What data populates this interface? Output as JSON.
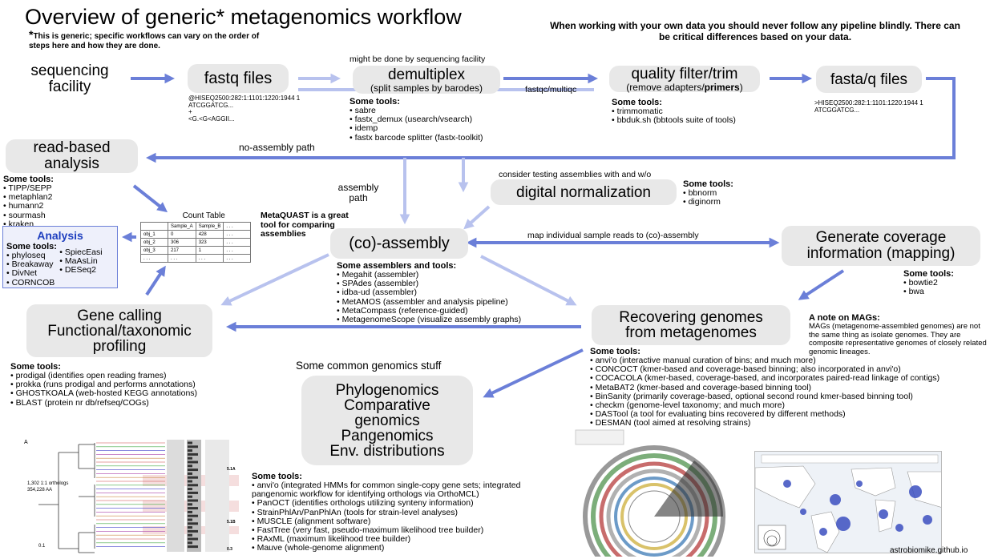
{
  "title": "Overview of generic* metagenomics workflow",
  "asterisk": "*",
  "generic_note": "This is generic; specific workflows can vary on the order of steps here and how they are done.",
  "warning": "When working with your own data you should never follow any pipeline blindly. There can be critical differences based on your data.",
  "sequencing_facility": "sequencing facility",
  "fastq_files": {
    "label": "fastq files",
    "example": [
      "@HISEQ2500:282:1:1101:1220:1944 1",
      "ATCGGATCG...",
      "+",
      "<G.<G<AGGII..."
    ]
  },
  "demultiplex": {
    "note": "might be done by sequencing facility",
    "label": "demultiplex",
    "sub": "(split samples by barodes)",
    "tools_head": "Some tools:",
    "tools": [
      "sabre",
      "fastx_demux (usearch/vsearch)",
      "idemp",
      "fastx barcode splitter (fastx-toolkit)"
    ]
  },
  "fastqc_label": "fastqc/multiqc",
  "quality": {
    "label": "quality filter/trim",
    "sub_pre": "(remove adapters/",
    "sub_bold": "primers",
    "sub_post": ")",
    "tools_head": "Some tools:",
    "tools": [
      "trimmomatic",
      "bbduk.sh (bbtools suite of tools)"
    ]
  },
  "fasta_files": {
    "label": "fasta/q files",
    "example": [
      ">HISEQ2500:282:1:1101:1220:1944 1",
      "ATCGGATCG..."
    ]
  },
  "read_based": {
    "label": "read-based analysis",
    "tools_head": "Some tools:",
    "tools": [
      "TIPP/SEPP",
      "metaphlan2",
      "humann2",
      "sourmash",
      "kraken"
    ]
  },
  "no_assembly_path": "no-assembly path",
  "assembly_path": "assembly path",
  "count_table": {
    "title": "Count Table",
    "header": [
      "",
      "Sample_A",
      "Sample_B",
      ". . ."
    ],
    "rows": [
      [
        "obj_1",
        "0",
        "428",
        ". . ."
      ],
      [
        "obj_2",
        "306",
        "323",
        ". . ."
      ],
      [
        "obj_3",
        "217",
        "1",
        ". . ."
      ],
      [
        ". . .",
        ". . .",
        ". . .",
        ". . ."
      ]
    ]
  },
  "analysis": {
    "title": "Analysis",
    "tools_head": "Some tools:",
    "tools_col1": [
      "phyloseq",
      "Breakaway",
      "DivNet",
      "CORNCOB"
    ],
    "tools_col2": [
      "SpiecEasi",
      "MaAsLin",
      "DESeq2"
    ]
  },
  "metaquast_note": "MetaQUAST is a great tool for comparing assemblies",
  "digital_norm": {
    "note": "consider testing assemblies with and w/o",
    "label": "digital normalization",
    "tools_head": "Some tools:",
    "tools": [
      "bbnorm",
      "diginorm"
    ]
  },
  "coassembly": {
    "label": "(co)-assembly",
    "tools_head": "Some assemblers and tools:",
    "tools": [
      "Megahit (assembler)",
      "SPAdes (assembler)",
      "idba-ud (assembler)",
      "MetAMOS (assembler and analysis pipeline)",
      "MetaCompass (reference-guided)",
      "MetagenomeScope (visualize assembly graphs)"
    ]
  },
  "map_label": "map individual sample reads to (co)-assembly",
  "coverage": {
    "label": "Generate coverage information (mapping)",
    "tools_head": "Some tools:",
    "tools": [
      "bowtie2",
      "bwa"
    ]
  },
  "gene_calling": {
    "label_lines": [
      "Gene calling",
      "Functional/taxonomic",
      "profiling"
    ],
    "tools_head": "Some tools:",
    "tools": [
      "prodigal (identifies open reading frames)",
      "prokka (runs prodigal and performs annotations)",
      "GHOSTKOALA (web-hosted KEGG annotations)",
      "BLAST (protein nr db/refseq/COGs)"
    ]
  },
  "recovering": {
    "label_lines": [
      "Recovering genomes",
      "from metagenomes"
    ],
    "tools_head": "Some tools:",
    "tools": [
      "anvi'o (interactive manual curation of bins; and much more)",
      "CONCOCT (kmer-based and coverage-based binning; also incorporated in anvi'o)",
      "COCACOLA (kmer-based, coverage-based, and incorporates paired-read linkage of contigs)",
      "MetaBAT2 (kmer-based and coverage-based binning tool)",
      "BinSanity (primarily coverage-based, optional second round kmer-based binning tool)",
      "checkm (genome-level taxonomy; and much more)",
      "DASTool (a tool for evaluating bins recovered by different methods)",
      "DESMAN (tool aimed at resolving strains)"
    ]
  },
  "mags": {
    "head": "A note on MAGs:",
    "body": "MAGs (metagenome-assembled genomes) are not the same thing as isolate genomes. They are composite representative genomes of closely related genomic lineages."
  },
  "genomics": {
    "heading": "Some common genomics stuff",
    "label_lines": [
      "Phylogenomics",
      "Comparative",
      "genomics",
      "Pangenomics",
      "Env. distributions"
    ],
    "tools_head": "Some tools:",
    "tools": [
      "anvi'o (integrated HMMs for common single-copy gene sets; integrated pangenomic workflow for identifying orthologs via OrthoMCL)",
      "PanOCT (identifies orthologs utilizing synteny information)",
      "StrainPhlAn/PanPhlAn (tools for strain-level analyses)",
      "MUSCLE (alignment software)",
      "FastTree (very fast, pseudo-maximum likelihood tree builder)",
      "RAxML (maximum likelihood tree builder)",
      "Mauve (whole-genome alignment)"
    ]
  },
  "tree_fig": {
    "panel": "A",
    "orthologs": "1,302 1:1 orthologs",
    "aa": "354,228 AA",
    "scale": "0.1",
    "right_labels": [
      "5.1A",
      "5.1B",
      "0.3"
    ]
  },
  "footer": "astrobiomike.github.io",
  "colors": {
    "arrow": "#6b7fd8",
    "arrow_light": "#b8c2ee",
    "node_bg": "#e8e8e8",
    "analysis_border": "#6b7fd8",
    "analysis_bg": "#eef0fb",
    "analysis_title": "#1f3fbf"
  }
}
